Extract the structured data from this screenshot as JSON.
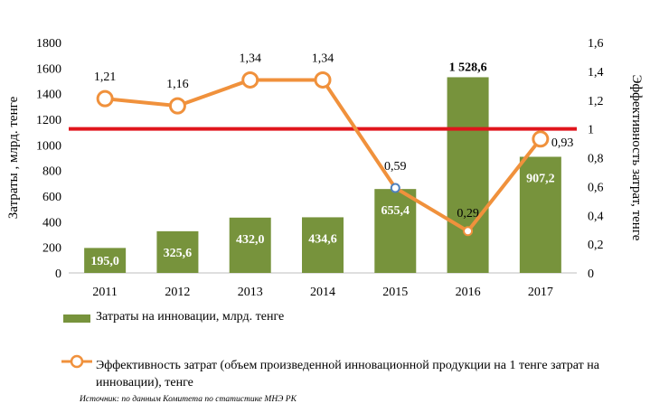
{
  "chart_data": {
    "type": "bar",
    "categories": [
      "2011",
      "2012",
      "2013",
      "2014",
      "2015",
      "2016",
      "2017"
    ],
    "series": [
      {
        "name": "Затраты на инновации, млрд. тенге",
        "kind": "bar",
        "axis": "left",
        "color": "#77933c",
        "values": [
          195.0,
          325.6,
          432.0,
          434.6,
          655.4,
          1528.6,
          907.2
        ],
        "labels": [
          "195,0",
          "325,6",
          "432,0",
          "434,6",
          "655,4",
          "1 528,6",
          "907,2"
        ]
      },
      {
        "name": "Эффективность затрат (объем произведенной инновационной продукции на 1 тенге затрат на инновации), тенге",
        "kind": "line",
        "axis": "right",
        "color": "#f0913c",
        "values": [
          1.21,
          1.16,
          1.34,
          1.34,
          0.59,
          0.29,
          0.93
        ],
        "labels": [
          "1,21",
          "1,16",
          "1,34",
          "1,34",
          "0,59",
          "0,29",
          "0,93"
        ]
      }
    ],
    "reference_line": {
      "value": 1,
      "axis": "right",
      "color": "#e0151c"
    },
    "ylabel": "Затраты , млрд. тенге",
    "ylabel_right": "Эффективность затрат, тенге",
    "ylim": [
      0,
      1800
    ],
    "ylim_right": [
      0,
      1.6
    ],
    "yticks": [
      "0",
      "200",
      "400",
      "600",
      "800",
      "1000",
      "1200",
      "1400",
      "1600",
      "1800"
    ],
    "yticks_right": [
      "0",
      "0,2",
      "0,4",
      "0,6",
      "0,8",
      "1",
      "1,2",
      "1,4",
      "1,6"
    ],
    "grid": false,
    "legend_position": "bottom"
  },
  "legend": {
    "bar_label": "Затраты на инновации, млрд. тенге",
    "line_label": "Эффективность затрат (объем произведенной инновационной продукции на 1 тенге затрат на инновации), тенге"
  },
  "source": "Источник: по данным Комитета по статистике МНЭ РК"
}
